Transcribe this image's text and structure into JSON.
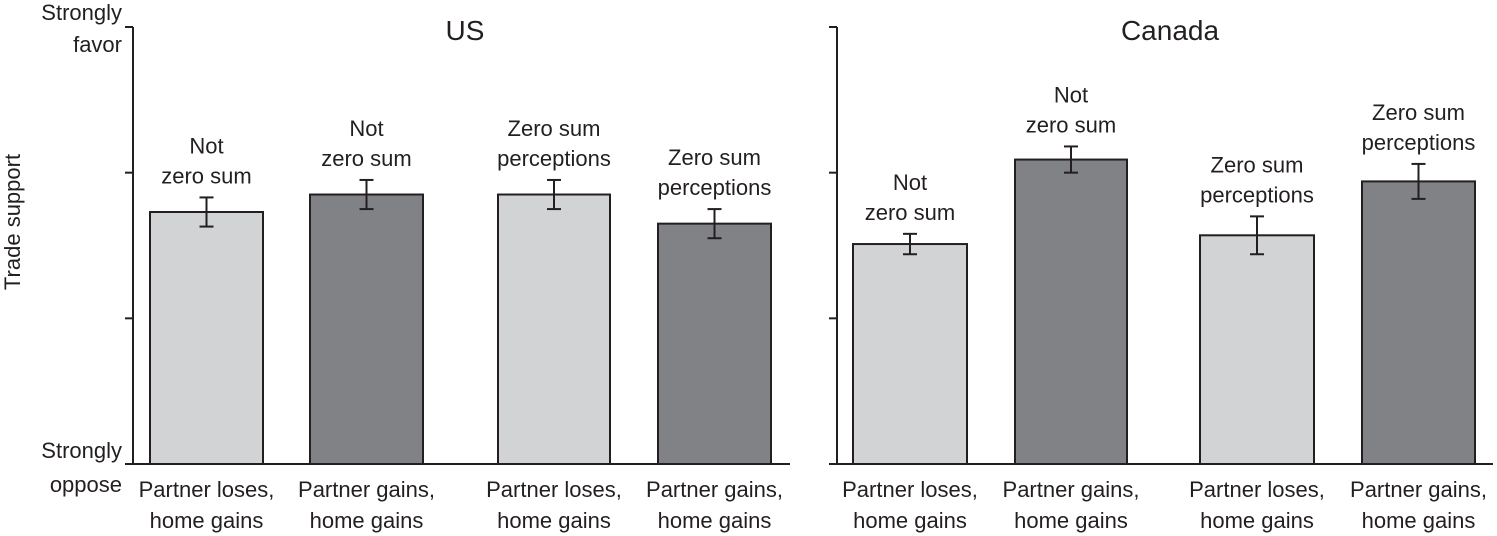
{
  "chart_data": {
    "type": "bar",
    "ylabel": "Trade support",
    "ytick_top": [
      "Strongly",
      "favor"
    ],
    "ytick_bottom": [
      "Strongly",
      "oppose"
    ],
    "ylim": [
      0,
      3
    ],
    "yticks": [
      0,
      1,
      2,
      3
    ],
    "colors": {
      "light": "#d1d3d4",
      "dark": "#808285",
      "stroke": "#231f20"
    },
    "panels": [
      {
        "title": "US",
        "bars": [
          {
            "category": [
              "Partner loses,",
              "home gains"
            ],
            "label": [
              "Not",
              "zero sum"
            ],
            "value": 1.73,
            "error": 0.1,
            "shade": "light"
          },
          {
            "category": [
              "Partner gains,",
              "home gains"
            ],
            "label": [
              "Not",
              "zero sum"
            ],
            "value": 1.85,
            "error": 0.1,
            "shade": "dark"
          },
          {
            "category": [
              "Partner loses,",
              "home gains"
            ],
            "label": [
              "Zero sum",
              "perceptions"
            ],
            "value": 1.85,
            "error": 0.1,
            "shade": "light"
          },
          {
            "category": [
              "Partner gains,",
              "home gains"
            ],
            "label": [
              "Zero sum",
              "perceptions"
            ],
            "value": 1.65,
            "error": 0.1,
            "shade": "dark"
          }
        ]
      },
      {
        "title": "Canada",
        "bars": [
          {
            "category": [
              "Partner loses,",
              "home gains"
            ],
            "label": [
              "Not",
              "zero sum"
            ],
            "value": 1.51,
            "error": 0.07,
            "shade": "light"
          },
          {
            "category": [
              "Partner gains,",
              "home gains"
            ],
            "label": [
              "Not",
              "zero sum"
            ],
            "value": 2.09,
            "error": 0.09,
            "shade": "dark"
          },
          {
            "category": [
              "Partner loses,",
              "home gains"
            ],
            "label": [
              "Zero sum",
              "perceptions"
            ],
            "value": 1.57,
            "error": 0.13,
            "shade": "light"
          },
          {
            "category": [
              "Partner gains,",
              "home gains"
            ],
            "label": [
              "Zero sum",
              "perceptions"
            ],
            "value": 1.94,
            "error": 0.12,
            "shade": "dark"
          }
        ]
      }
    ]
  }
}
